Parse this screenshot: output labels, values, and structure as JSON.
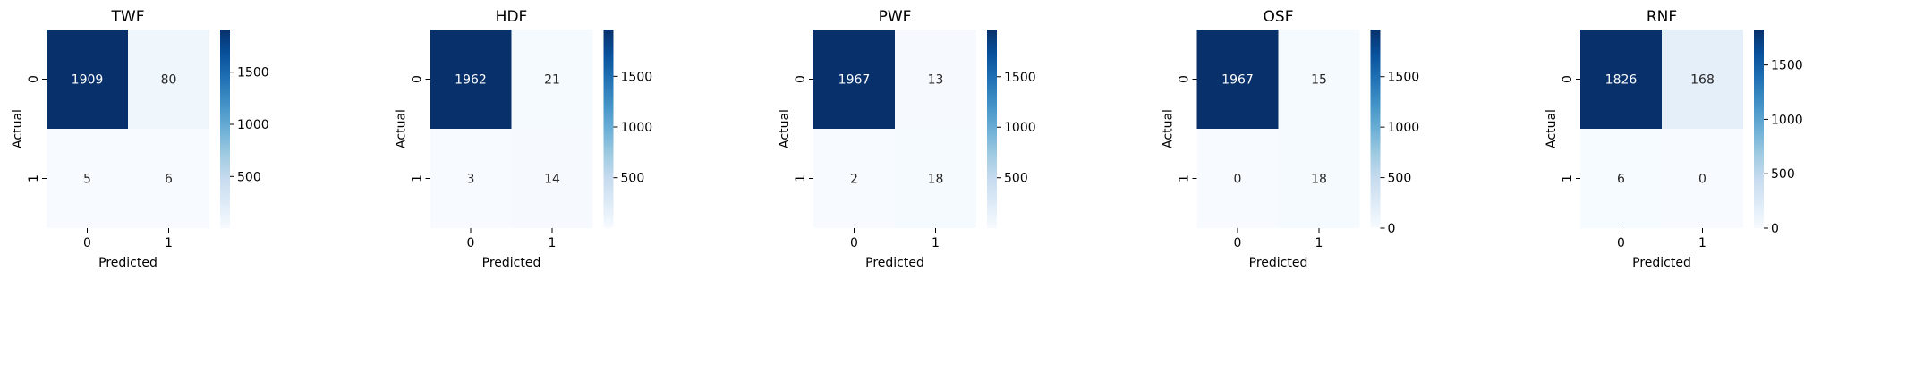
{
  "colorscale": [
    "#f7fbff",
    "#deebf7",
    "#c6dbef",
    "#9ecae1",
    "#6baed6",
    "#4292c6",
    "#2171b5",
    "#08519c",
    "#08306b"
  ],
  "chart_data": [
    {
      "type": "heatmap",
      "title": "TWF",
      "xlabel": "Predicted",
      "ylabel": "Actual",
      "x_categories": [
        "0",
        "1"
      ],
      "y_categories": [
        "0",
        "1"
      ],
      "values": [
        [
          1909,
          80
        ],
        [
          5,
          6
        ]
      ],
      "colorbar_range": [
        5,
        1909
      ],
      "colorbar_ticks": [
        500,
        1000,
        1500
      ]
    },
    {
      "type": "heatmap",
      "title": "HDF",
      "xlabel": "Predicted",
      "ylabel": "Actual",
      "x_categories": [
        "0",
        "1"
      ],
      "y_categories": [
        "0",
        "1"
      ],
      "values": [
        [
          1962,
          21
        ],
        [
          3,
          14
        ]
      ],
      "colorbar_range": [
        3,
        1962
      ],
      "colorbar_ticks": [
        500,
        1000,
        1500
      ]
    },
    {
      "type": "heatmap",
      "title": "PWF",
      "xlabel": "Predicted",
      "ylabel": "Actual",
      "x_categories": [
        "0",
        "1"
      ],
      "y_categories": [
        "0",
        "1"
      ],
      "values": [
        [
          1967,
          13
        ],
        [
          2,
          18
        ]
      ],
      "colorbar_range": [
        2,
        1967
      ],
      "colorbar_ticks": [
        500,
        1000,
        1500
      ]
    },
    {
      "type": "heatmap",
      "title": "OSF",
      "xlabel": "Predicted",
      "ylabel": "Actual",
      "x_categories": [
        "0",
        "1"
      ],
      "y_categories": [
        "0",
        "1"
      ],
      "values": [
        [
          1967,
          15
        ],
        [
          0,
          18
        ]
      ],
      "colorbar_range": [
        0,
        1967
      ],
      "colorbar_ticks": [
        0,
        500,
        1000,
        1500
      ]
    },
    {
      "type": "heatmap",
      "title": "RNF",
      "xlabel": "Predicted",
      "ylabel": "Actual",
      "x_categories": [
        "0",
        "1"
      ],
      "y_categories": [
        "0",
        "1"
      ],
      "values": [
        [
          1826,
          168
        ],
        [
          6,
          0
        ]
      ],
      "colorbar_range": [
        0,
        1826
      ],
      "colorbar_ticks": [
        0,
        500,
        1000,
        1500
      ]
    }
  ]
}
